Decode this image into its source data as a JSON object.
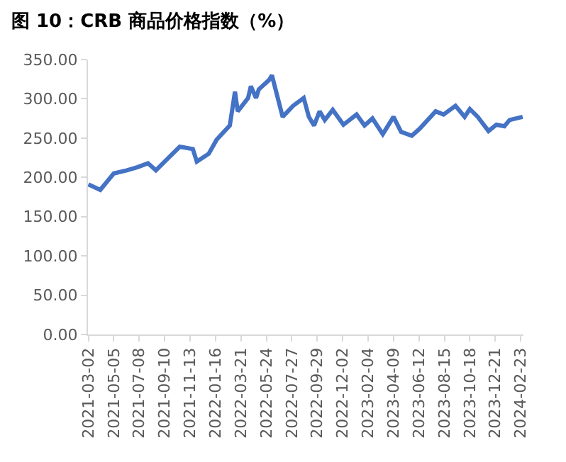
{
  "chart_data": {
    "type": "line",
    "title": "图 10：CRB 商品价格指数（%）",
    "x": [
      "2021-03-02",
      "2021-04-01",
      "2021-05-05",
      "2021-06-07",
      "2021-07-04",
      "2021-07-30",
      "2021-08-19",
      "2021-09-14",
      "2021-10-18",
      "2021-11-20",
      "2021-11-30",
      "2021-12-30",
      "2022-01-19",
      "2022-02-21",
      "2022-03-06",
      "2022-03-13",
      "2022-04-08",
      "2022-04-15",
      "2022-04-28",
      "2022-05-05",
      "2022-05-31",
      "2022-06-07",
      "2022-07-04",
      "2022-07-30",
      "2022-08-26",
      "2022-09-08",
      "2022-09-21",
      "2022-10-05",
      "2022-10-18",
      "2022-11-07",
      "2022-12-04",
      "2023-01-06",
      "2023-01-26",
      "2023-02-15",
      "2023-03-13",
      "2023-04-09",
      "2023-04-28",
      "2023-05-25",
      "2023-06-14",
      "2023-07-24",
      "2023-08-13",
      "2023-09-12",
      "2023-10-05",
      "2023-10-18",
      "2023-11-07",
      "2023-12-04",
      "2023-12-24",
      "2024-01-13",
      "2024-01-26",
      "2024-02-28"
    ],
    "series": [
      {
        "color": "#4472c4",
        "values": [
          191,
          184,
          205,
          209,
          213,
          218,
          209,
          222,
          239,
          236,
          220,
          230,
          248,
          266,
          309,
          284,
          301,
          316,
          301,
          312,
          324,
          330,
          277,
          291,
          301,
          277,
          266,
          284,
          273,
          286,
          267,
          280,
          266,
          275,
          255,
          277,
          258,
          253,
          262,
          284,
          280,
          291,
          277,
          287,
          277,
          259,
          267,
          265,
          273,
          277
        ]
      }
    ],
    "xlim": [
      "2021-03-01",
      "2024-03-01"
    ],
    "xticks": [
      "2021-03-02",
      "2021-05-05",
      "2021-07-08",
      "2021-09-10",
      "2021-11-13",
      "2022-01-16",
      "2022-03-21",
      "2022-05-24",
      "2022-07-27",
      "2022-09-29",
      "2022-12-02",
      "2023-02-04",
      "2023-04-09",
      "2023-06-12",
      "2023-08-15",
      "2023-10-18",
      "2023-12-21",
      "2024-02-23"
    ],
    "ylim": [
      0,
      350
    ],
    "yticks": [
      {
        "value": 0,
        "label": "0.00"
      },
      {
        "value": 50,
        "label": "50.00"
      },
      {
        "value": 100,
        "label": "100.00"
      },
      {
        "value": 150,
        "label": "150.00"
      },
      {
        "value": 200,
        "label": "200.00"
      },
      {
        "value": 250,
        "label": "250.00"
      },
      {
        "value": 300,
        "label": "300.00"
      },
      {
        "value": 350,
        "label": "350.00"
      }
    ],
    "grid": false,
    "legend": false,
    "marker": "none",
    "line_style": "solid"
  }
}
